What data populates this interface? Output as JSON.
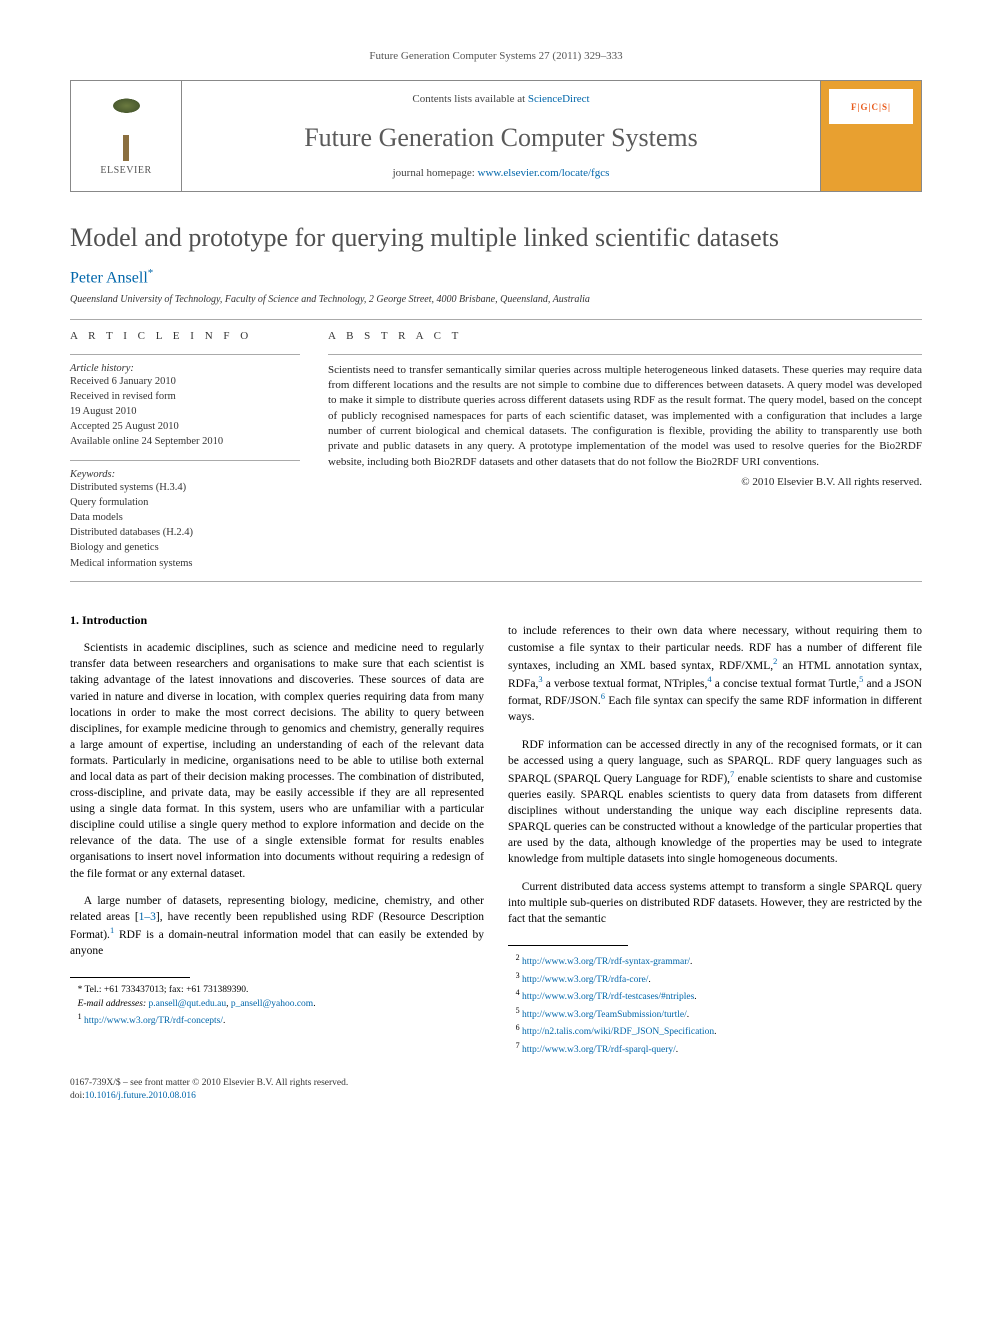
{
  "running_head": "Future Generation Computer Systems 27 (2011) 329–333",
  "masthead": {
    "contents_prefix": "Contents lists available at ",
    "contents_link": "ScienceDirect",
    "journal_title": "Future Generation Computer Systems",
    "homepage_prefix": "journal homepage: ",
    "homepage_link": "www.elsevier.com/locate/fgcs",
    "publisher_label": "ELSEVIER",
    "cover_text": "F|G|C|S|"
  },
  "article": {
    "title": "Model and prototype for querying multiple linked scientific datasets",
    "author": "Peter Ansell",
    "author_marker": "*",
    "affiliation": "Queensland University of Technology, Faculty of Science and Technology, 2 George Street, 4000 Brisbane, Queensland, Australia"
  },
  "info": {
    "heading": "A R T I C L E   I N F O",
    "history_label": "Article history:",
    "history": [
      "Received 6 January 2010",
      "Received in revised form",
      "19 August 2010",
      "Accepted 25 August 2010",
      "Available online 24 September 2010"
    ],
    "keywords_label": "Keywords:",
    "keywords": [
      "Distributed systems (H.3.4)",
      "Query formulation",
      "Data models",
      "Distributed databases (H.2.4)",
      "Biology and genetics",
      "Medical information systems"
    ]
  },
  "abstract": {
    "heading": "A B S T R A C T",
    "text": "Scientists need to transfer semantically similar queries across multiple heterogeneous linked datasets. These queries may require data from different locations and the results are not simple to combine due to differences between datasets. A query model was developed to make it simple to distribute queries across different datasets using RDF as the result format. The query model, based on the concept of publicly recognised namespaces for parts of each scientific dataset, was implemented with a configuration that includes a large number of current biological and chemical datasets. The configuration is flexible, providing the ability to transparently use both private and public datasets in any query. A prototype implementation of the model was used to resolve queries for the Bio2RDF website, including both Bio2RDF datasets and other datasets that do not follow the Bio2RDF URI conventions.",
    "copyright": "© 2010 Elsevier B.V. All rights reserved."
  },
  "body": {
    "section1_heading": "1. Introduction",
    "col1_p1": "Scientists in academic disciplines, such as science and medicine need to regularly transfer data between researchers and organisations to make sure that each scientist is taking advantage of the latest innovations and discoveries. These sources of data are varied in nature and diverse in location, with complex queries requiring data from many locations in order to make the most correct decisions. The ability to query between disciplines, for example medicine through to genomics and chemistry, generally requires a large amount of expertise, including an understanding of each of the relevant data formats. Particularly in medicine, organisations need to be able to utilise both external and local data as part of their decision making processes. The combination of distributed, cross-discipline, and private data, may be easily accessible if they are all represented using a single data format. In this system, users who are unfamiliar with a particular discipline could utilise a single query method to explore information and decide on the relevance of the data. The use of a single extensible format for results enables organisations to insert novel information into documents without requiring a redesign of the file format or any external dataset.",
    "col1_p2_a": "A large number of datasets, representing biology, medicine, chemistry, and other related areas [",
    "col1_p2_ref": "1–3",
    "col1_p2_b": "], have recently been republished using RDF (Resource Description Format).",
    "col1_p2_sup": "1",
    "col1_p2_c": " RDF is a domain-neutral information model that can easily be extended by anyone",
    "col2_p1_a": "to include references to their own data where necessary, without requiring them to customise a file syntax to their particular needs. RDF has a number of different file syntaxes, including an XML based syntax, RDF/XML,",
    "col2_p1_s2": "2",
    "col2_p1_b": " an HTML annotation syntax, RDFa,",
    "col2_p1_s3": "3",
    "col2_p1_c": " a verbose textual format, NTriples,",
    "col2_p1_s4": "4",
    "col2_p1_d": " a concise textual format Turtle,",
    "col2_p1_s5": "5",
    "col2_p1_e": " and a JSON format, RDF/JSON.",
    "col2_p1_s6": "6",
    "col2_p1_f": " Each file syntax can specify the same RDF information in different ways.",
    "col2_p2_a": "RDF information can be accessed directly in any of the recognised formats, or it can be accessed using a query language, such as SPARQL. RDF query languages such as SPARQL (SPARQL Query Language for RDF),",
    "col2_p2_s7": "7",
    "col2_p2_b": " enable scientists to share and customise queries easily. SPARQL enables scientists to query data from datasets from different disciplines without understanding the unique way each discipline represents data. SPARQL queries can be constructed without a knowledge of the particular properties that are used by the data, although knowledge of the properties may be used to integrate knowledge from multiple datasets into single homogeneous documents.",
    "col2_p3": "Current distributed data access systems attempt to transform a single SPARQL query into multiple sub-queries on distributed RDF datasets. However, they are restricted by the fact that the semantic"
  },
  "footnotes_left": {
    "corr": "* Tel.: +61 733437013; fax: +61 731389390.",
    "email_label": "E-mail addresses:",
    "email1": "p.ansell@qut.edu.au",
    "email_sep": ", ",
    "email2": "p_ansell@yahoo.com",
    "email_end": ".",
    "fn1_mark": "1",
    "fn1_link": "http://www.w3.org/TR/rdf-concepts/",
    "fn1_end": "."
  },
  "footnotes_right": [
    {
      "mark": "2",
      "link": "http://www.w3.org/TR/rdf-syntax-grammar/",
      "end": "."
    },
    {
      "mark": "3",
      "link": "http://www.w3.org/TR/rdfa-core/",
      "end": "."
    },
    {
      "mark": "4",
      "link": "http://www.w3.org/TR/rdf-testcases/#ntriples",
      "end": "."
    },
    {
      "mark": "5",
      "link": "http://www.w3.org/TeamSubmission/turtle/",
      "end": "."
    },
    {
      "mark": "6",
      "link": "http://n2.talis.com/wiki/RDF_JSON_Specification",
      "end": "."
    },
    {
      "mark": "7",
      "link": "http://www.w3.org/TR/rdf-sparql-query/",
      "end": "."
    }
  ],
  "footer": {
    "line1": "0167-739X/$ – see front matter © 2010 Elsevier B.V. All rights reserved.",
    "doi_label": "doi:",
    "doi": "10.1016/j.future.2010.08.016"
  }
}
